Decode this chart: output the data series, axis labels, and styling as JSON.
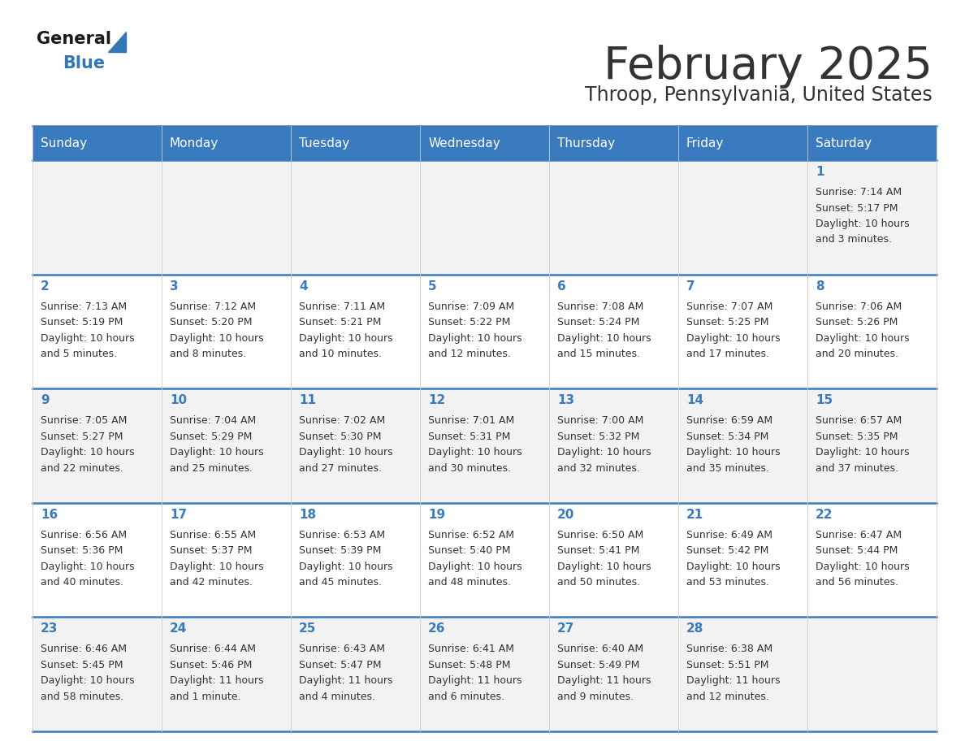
{
  "title": "February 2025",
  "subtitle": "Throop, Pennsylvania, United States",
  "days_of_week": [
    "Sunday",
    "Monday",
    "Tuesday",
    "Wednesday",
    "Thursday",
    "Friday",
    "Saturday"
  ],
  "header_bg": "#3a7abf",
  "header_text": "#ffffff",
  "cell_bg_odd": "#f2f2f2",
  "cell_bg_even": "#ffffff",
  "day_num_color": "#3a7abf",
  "text_color": "#333333",
  "border_color": "#3a7abf",
  "title_color": "#333333",
  "logo_black": "#1a1a1a",
  "logo_blue": "#3278b4",
  "calendar_data": [
    [
      {
        "day": null,
        "sunrise": null,
        "sunset": null,
        "daylight": null
      },
      {
        "day": null,
        "sunrise": null,
        "sunset": null,
        "daylight": null
      },
      {
        "day": null,
        "sunrise": null,
        "sunset": null,
        "daylight": null
      },
      {
        "day": null,
        "sunrise": null,
        "sunset": null,
        "daylight": null
      },
      {
        "day": null,
        "sunrise": null,
        "sunset": null,
        "daylight": null
      },
      {
        "day": null,
        "sunrise": null,
        "sunset": null,
        "daylight": null
      },
      {
        "day": 1,
        "sunrise": "7:14 AM",
        "sunset": "5:17 PM",
        "daylight": "10 hours",
        "daylight2": "and 3 minutes."
      }
    ],
    [
      {
        "day": 2,
        "sunrise": "7:13 AM",
        "sunset": "5:19 PM",
        "daylight": "10 hours",
        "daylight2": "and 5 minutes."
      },
      {
        "day": 3,
        "sunrise": "7:12 AM",
        "sunset": "5:20 PM",
        "daylight": "10 hours",
        "daylight2": "and 8 minutes."
      },
      {
        "day": 4,
        "sunrise": "7:11 AM",
        "sunset": "5:21 PM",
        "daylight": "10 hours",
        "daylight2": "and 10 minutes."
      },
      {
        "day": 5,
        "sunrise": "7:09 AM",
        "sunset": "5:22 PM",
        "daylight": "10 hours",
        "daylight2": "and 12 minutes."
      },
      {
        "day": 6,
        "sunrise": "7:08 AM",
        "sunset": "5:24 PM",
        "daylight": "10 hours",
        "daylight2": "and 15 minutes."
      },
      {
        "day": 7,
        "sunrise": "7:07 AM",
        "sunset": "5:25 PM",
        "daylight": "10 hours",
        "daylight2": "and 17 minutes."
      },
      {
        "day": 8,
        "sunrise": "7:06 AM",
        "sunset": "5:26 PM",
        "daylight": "10 hours",
        "daylight2": "and 20 minutes."
      }
    ],
    [
      {
        "day": 9,
        "sunrise": "7:05 AM",
        "sunset": "5:27 PM",
        "daylight": "10 hours",
        "daylight2": "and 22 minutes."
      },
      {
        "day": 10,
        "sunrise": "7:04 AM",
        "sunset": "5:29 PM",
        "daylight": "10 hours",
        "daylight2": "and 25 minutes."
      },
      {
        "day": 11,
        "sunrise": "7:02 AM",
        "sunset": "5:30 PM",
        "daylight": "10 hours",
        "daylight2": "and 27 minutes."
      },
      {
        "day": 12,
        "sunrise": "7:01 AM",
        "sunset": "5:31 PM",
        "daylight": "10 hours",
        "daylight2": "and 30 minutes."
      },
      {
        "day": 13,
        "sunrise": "7:00 AM",
        "sunset": "5:32 PM",
        "daylight": "10 hours",
        "daylight2": "and 32 minutes."
      },
      {
        "day": 14,
        "sunrise": "6:59 AM",
        "sunset": "5:34 PM",
        "daylight": "10 hours",
        "daylight2": "and 35 minutes."
      },
      {
        "day": 15,
        "sunrise": "6:57 AM",
        "sunset": "5:35 PM",
        "daylight": "10 hours",
        "daylight2": "and 37 minutes."
      }
    ],
    [
      {
        "day": 16,
        "sunrise": "6:56 AM",
        "sunset": "5:36 PM",
        "daylight": "10 hours",
        "daylight2": "and 40 minutes."
      },
      {
        "day": 17,
        "sunrise": "6:55 AM",
        "sunset": "5:37 PM",
        "daylight": "10 hours",
        "daylight2": "and 42 minutes."
      },
      {
        "day": 18,
        "sunrise": "6:53 AM",
        "sunset": "5:39 PM",
        "daylight": "10 hours",
        "daylight2": "and 45 minutes."
      },
      {
        "day": 19,
        "sunrise": "6:52 AM",
        "sunset": "5:40 PM",
        "daylight": "10 hours",
        "daylight2": "and 48 minutes."
      },
      {
        "day": 20,
        "sunrise": "6:50 AM",
        "sunset": "5:41 PM",
        "daylight": "10 hours",
        "daylight2": "and 50 minutes."
      },
      {
        "day": 21,
        "sunrise": "6:49 AM",
        "sunset": "5:42 PM",
        "daylight": "10 hours",
        "daylight2": "and 53 minutes."
      },
      {
        "day": 22,
        "sunrise": "6:47 AM",
        "sunset": "5:44 PM",
        "daylight": "10 hours",
        "daylight2": "and 56 minutes."
      }
    ],
    [
      {
        "day": 23,
        "sunrise": "6:46 AM",
        "sunset": "5:45 PM",
        "daylight": "10 hours",
        "daylight2": "and 58 minutes."
      },
      {
        "day": 24,
        "sunrise": "6:44 AM",
        "sunset": "5:46 PM",
        "daylight": "11 hours",
        "daylight2": "and 1 minute."
      },
      {
        "day": 25,
        "sunrise": "6:43 AM",
        "sunset": "5:47 PM",
        "daylight": "11 hours",
        "daylight2": "and 4 minutes."
      },
      {
        "day": 26,
        "sunrise": "6:41 AM",
        "sunset": "5:48 PM",
        "daylight": "11 hours",
        "daylight2": "and 6 minutes."
      },
      {
        "day": 27,
        "sunrise": "6:40 AM",
        "sunset": "5:49 PM",
        "daylight": "11 hours",
        "daylight2": "and 9 minutes."
      },
      {
        "day": 28,
        "sunrise": "6:38 AM",
        "sunset": "5:51 PM",
        "daylight": "11 hours",
        "daylight2": "and 12 minutes."
      },
      {
        "day": null,
        "sunrise": null,
        "sunset": null,
        "daylight": null,
        "daylight2": null
      }
    ]
  ]
}
